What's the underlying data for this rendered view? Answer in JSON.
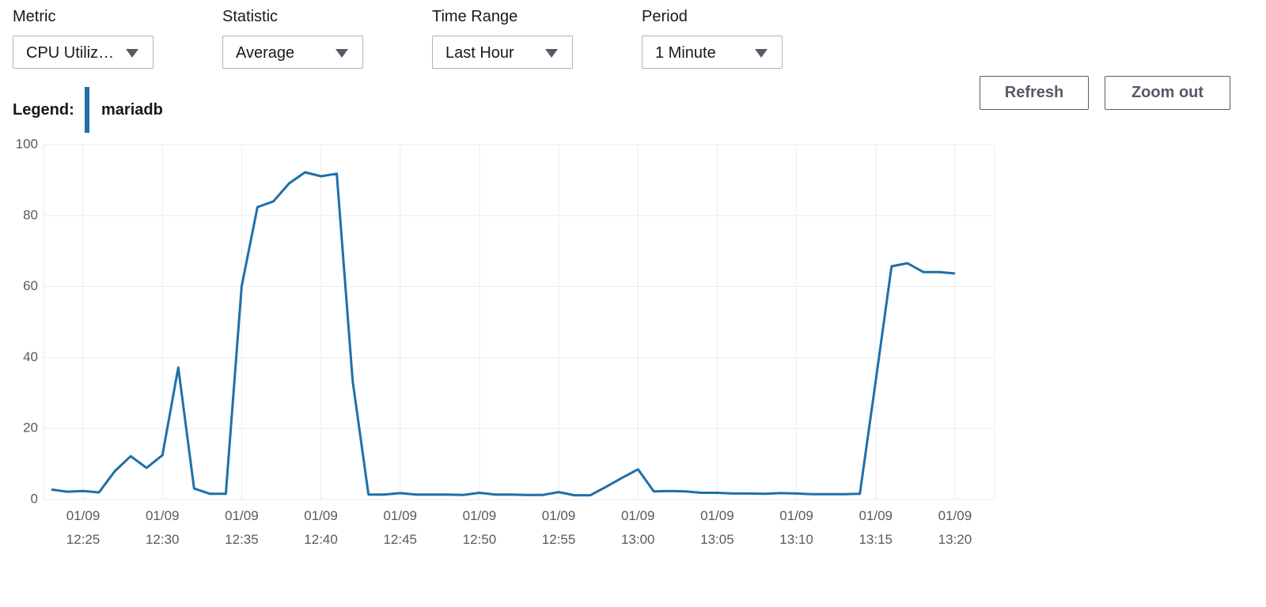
{
  "controls": [
    {
      "label": "Metric",
      "value": "CPU Utiliz…"
    },
    {
      "label": "Statistic",
      "value": "Average"
    },
    {
      "label": "Time Range",
      "value": "Last Hour"
    },
    {
      "label": "Period",
      "value": "1 Minute"
    }
  ],
  "buttons": [
    "Refresh",
    "Zoom out"
  ],
  "legend_label": "Legend:",
  "chart_data": {
    "type": "line",
    "x": [
      "12:23",
      "12:24",
      "12:25",
      "12:26",
      "12:27",
      "12:28",
      "12:29",
      "12:30",
      "12:31",
      "12:32",
      "12:33",
      "12:34",
      "12:35",
      "12:36",
      "12:37",
      "12:38",
      "12:39",
      "12:40",
      "12:41",
      "12:42",
      "12:43",
      "12:44",
      "12:45",
      "12:46",
      "12:47",
      "12:48",
      "12:49",
      "12:50",
      "12:51",
      "12:52",
      "12:53",
      "12:54",
      "12:55",
      "12:56",
      "12:57",
      "12:58",
      "12:59",
      "13:00",
      "13:01",
      "13:02",
      "13:03",
      "13:04",
      "13:05",
      "13:06",
      "13:07",
      "13:08",
      "13:09",
      "13:10",
      "13:11",
      "13:12",
      "13:13",
      "13:14",
      "13:15",
      "13:16",
      "13:17",
      "13:18",
      "13:19",
      "13:20"
    ],
    "series": [
      {
        "name": "mariadb",
        "color": "#1f6fa8",
        "values": [
          2.8,
          2.2,
          2.4,
          2.0,
          8.0,
          12.2,
          8.9,
          12.5,
          37.2,
          3.1,
          1.6,
          1.6,
          60.1,
          82.4,
          84.0,
          89.1,
          92.2,
          91.1,
          91.8,
          33.4,
          1.4,
          1.4,
          1.8,
          1.4,
          1.4,
          1.4,
          1.3,
          1.9,
          1.4,
          1.4,
          1.3,
          1.3,
          2.1,
          1.2,
          1.2,
          3.6,
          6.1,
          8.5,
          2.3,
          2.4,
          2.3,
          1.9,
          1.9,
          1.7,
          1.7,
          1.6,
          1.8,
          1.7,
          1.5,
          1.5,
          1.5,
          1.6,
          33.5,
          65.7,
          66.6,
          64.1,
          64.1,
          63.7
        ]
      }
    ],
    "xlim": [
      "12:22:30",
      "13:22:30"
    ],
    "xticks": [
      {
        "date": "01/09",
        "time": "12:25"
      },
      {
        "date": "01/09",
        "time": "12:30"
      },
      {
        "date": "01/09",
        "time": "12:35"
      },
      {
        "date": "01/09",
        "time": "12:40"
      },
      {
        "date": "01/09",
        "time": "12:45"
      },
      {
        "date": "01/09",
        "time": "12:50"
      },
      {
        "date": "01/09",
        "time": "12:55"
      },
      {
        "date": "01/09",
        "time": "13:00"
      },
      {
        "date": "01/09",
        "time": "13:05"
      },
      {
        "date": "01/09",
        "time": "13:10"
      },
      {
        "date": "01/09",
        "time": "13:15"
      },
      {
        "date": "01/09",
        "time": "13:20"
      }
    ],
    "ylim": [
      0,
      100
    ],
    "yticks": [
      0,
      20,
      40,
      60,
      80,
      100
    ],
    "grid": true
  }
}
